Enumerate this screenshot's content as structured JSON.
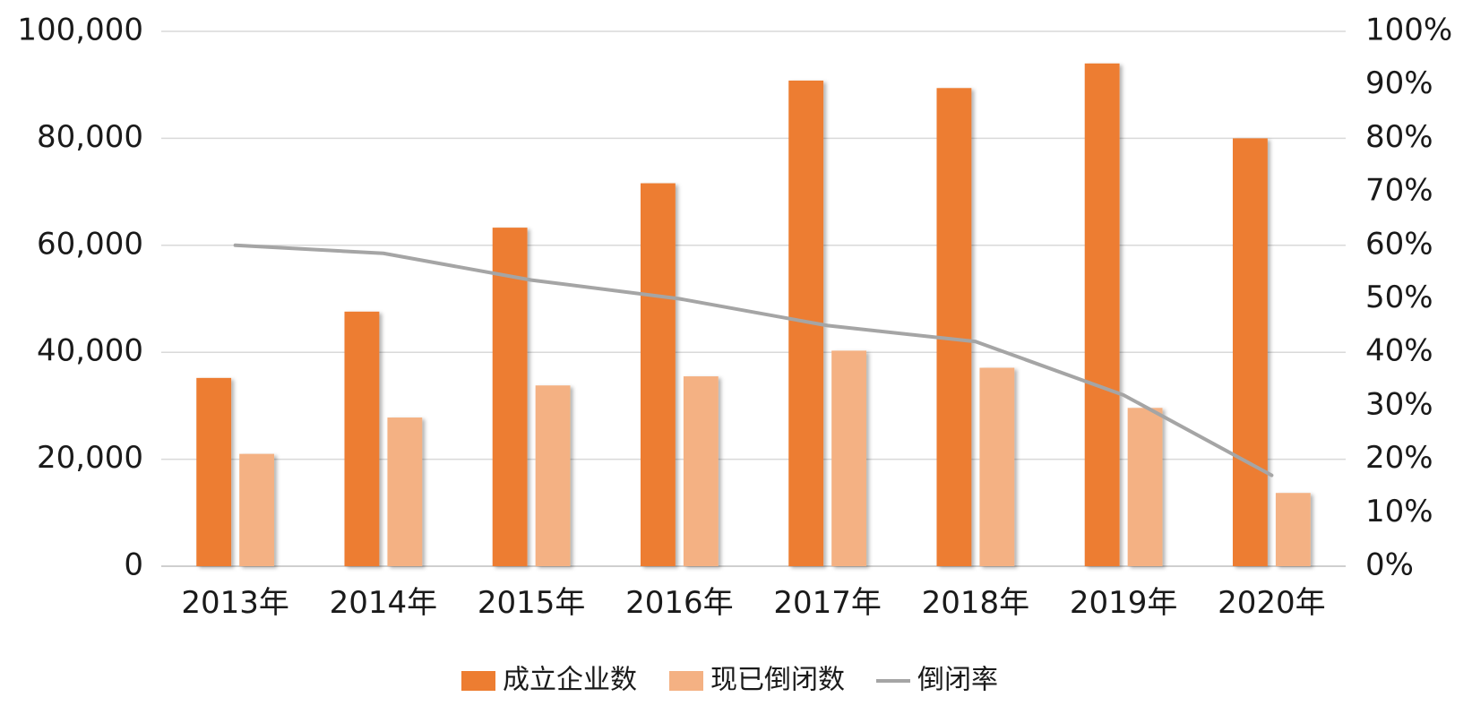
{
  "chart_data": {
    "type": "bar",
    "categories": [
      "2013年",
      "2014年",
      "2015年",
      "2016年",
      "2017年",
      "2018年",
      "2019年",
      "2020年"
    ],
    "series": [
      {
        "name": "成立企业数",
        "kind": "bar",
        "axis": "left",
        "color": "#ED7D31",
        "values": [
          35200,
          47600,
          63300,
          71600,
          90800,
          89400,
          94000,
          80000
        ]
      },
      {
        "name": "现已倒闭数",
        "kind": "bar",
        "axis": "left",
        "color": "#F4B183",
        "values": [
          21000,
          27800,
          33800,
          35500,
          40300,
          37100,
          29600,
          13700
        ]
      },
      {
        "name": "倒闭率",
        "kind": "line",
        "axis": "right",
        "color": "#A5A5A5",
        "values": [
          0.6,
          0.585,
          0.535,
          0.5,
          0.45,
          0.42,
          0.32,
          0.17
        ]
      }
    ],
    "y_left": {
      "min": 0,
      "max": 100000,
      "ticks": [
        0,
        20000,
        40000,
        60000,
        80000,
        100000
      ],
      "tick_labels": [
        "0",
        "20,000",
        "40,000",
        "60,000",
        "80,000",
        "100,000"
      ]
    },
    "y_right": {
      "min": 0,
      "max": 1,
      "ticks": [
        0,
        0.1,
        0.2,
        0.3,
        0.4,
        0.5,
        0.6,
        0.7,
        0.8,
        0.9,
        1.0
      ],
      "tick_labels": [
        "0%",
        "10%",
        "20%",
        "30%",
        "40%",
        "50%",
        "60%",
        "70%",
        "80%",
        "90%",
        "100%"
      ]
    },
    "title": "",
    "xlabel": "",
    "ylabel": "",
    "grid": true,
    "legend_position": "bottom"
  }
}
